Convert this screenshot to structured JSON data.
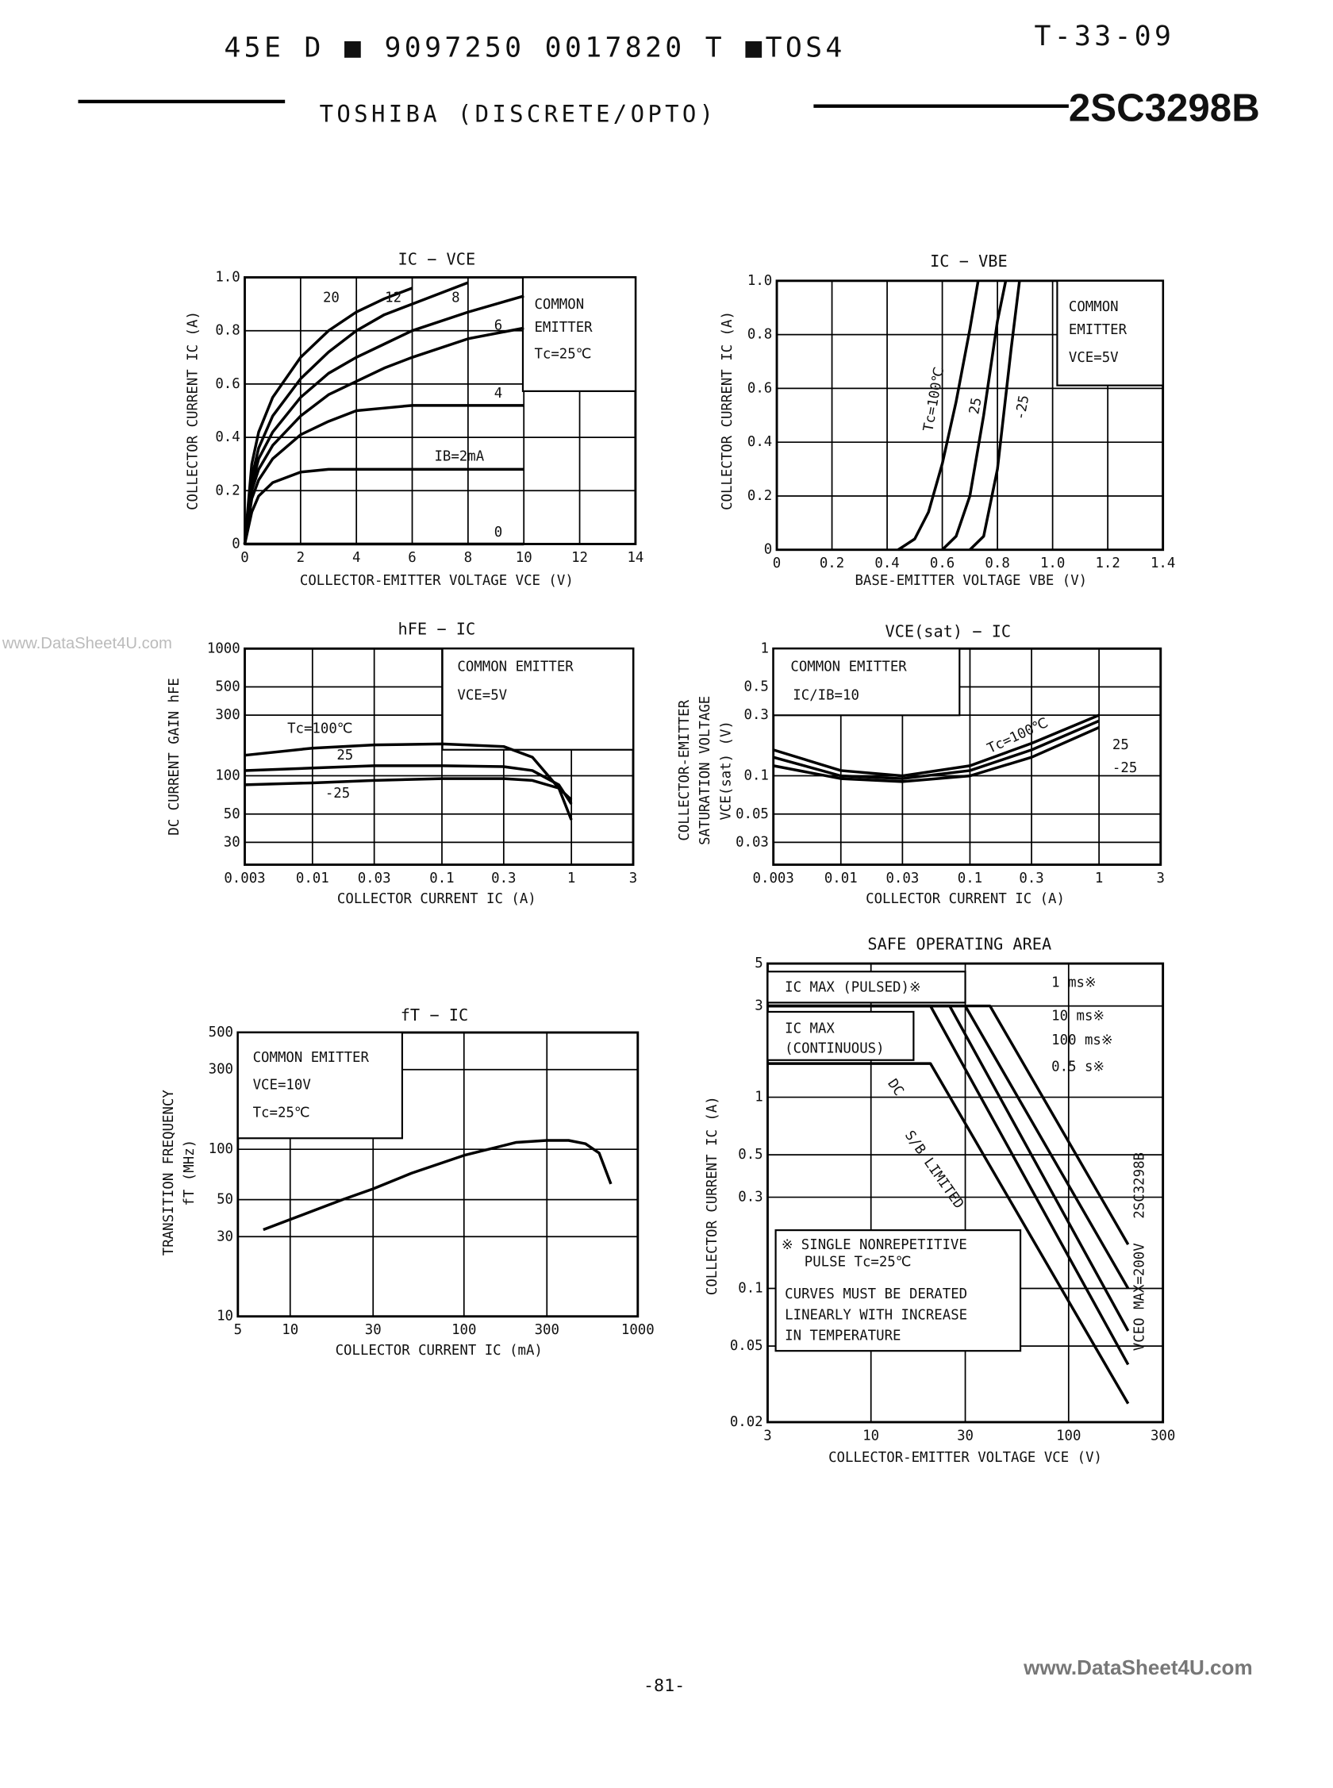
{
  "header": {
    "code": "45E D ■ 9097250 0017820 T ■TOS4",
    "ref": "T-33-09",
    "maker": "TOSHIBA (DISCRETE/OPTO)",
    "part": "2SC3298B"
  },
  "watermark": "www.DataSheet4U.com",
  "footer": {
    "page": "-81-",
    "site": "www.DataSheet4U.com"
  },
  "chart_data": [
    {
      "type": "line",
      "title": "IC − VCE",
      "xlabel": "COLLECTOR-EMITTER VOLTAGE  VCE (V)",
      "ylabel": [
        "COLLECTOR CURRENT  IC (A)"
      ],
      "xscale": "linear",
      "yscale": "linear",
      "xlim": [
        0,
        14
      ],
      "ylim": [
        0,
        1
      ],
      "xticks": [
        0,
        2,
        4,
        6,
        8,
        10,
        12,
        14
      ],
      "yticks": [
        0,
        0.2,
        0.4,
        0.6,
        0.8,
        {
          "value": 1,
          "label": "1.0"
        }
      ],
      "grid": true,
      "annotations": [
        "COMMON",
        "EMITTER",
        "Tc=25℃"
      ],
      "series": [
        {
          "name": "20",
          "color": "#000",
          "x": [
            0,
            0.25,
            0.5,
            1,
            2,
            3,
            4,
            5,
            6,
            8,
            10
          ],
          "values": [
            0,
            0.3,
            0.42,
            0.55,
            0.7,
            0.8,
            0.87,
            0.92,
            0.96,
            null,
            null
          ]
        },
        {
          "name": "12",
          "color": "#000",
          "x": [
            0,
            0.25,
            0.5,
            1,
            2,
            3,
            4,
            5,
            6,
            8,
            10
          ],
          "values": [
            0,
            0.25,
            0.36,
            0.48,
            0.62,
            0.72,
            0.8,
            0.86,
            0.9,
            0.98,
            null
          ]
        },
        {
          "name": "8",
          "color": "#000",
          "x": [
            0,
            0.25,
            0.5,
            1,
            2,
            3,
            4,
            5,
            6,
            8,
            10
          ],
          "values": [
            0,
            0.22,
            0.32,
            0.42,
            0.55,
            0.64,
            0.7,
            0.75,
            0.8,
            0.87,
            0.93
          ]
        },
        {
          "name": "6",
          "color": "#000",
          "x": [
            0,
            0.25,
            0.5,
            1,
            2,
            3,
            4,
            5,
            6,
            8,
            10
          ],
          "values": [
            0,
            0.2,
            0.28,
            0.37,
            0.48,
            0.56,
            0.61,
            0.66,
            0.7,
            0.77,
            0.81
          ]
        },
        {
          "name": "4",
          "color": "#000",
          "x": [
            0,
            0.25,
            0.5,
            1,
            2,
            3,
            4,
            5,
            6,
            8,
            10
          ],
          "values": [
            0,
            0.17,
            0.24,
            0.32,
            0.41,
            0.46,
            0.5,
            0.51,
            0.52,
            0.52,
            0.52
          ]
        },
        {
          "name": "IB=2mA",
          "color": "#000",
          "x": [
            0,
            0.25,
            0.5,
            1,
            2,
            3,
            4,
            5,
            6,
            8,
            10
          ],
          "values": [
            0,
            0.12,
            0.18,
            0.23,
            0.27,
            0.28,
            0.28,
            0.28,
            0.28,
            0.28,
            0.28
          ]
        },
        {
          "name": "0",
          "color": "#000",
          "x": [
            0,
            0.25,
            0.5,
            1,
            2,
            3,
            4,
            5,
            6,
            8,
            10
          ],
          "values": [
            0,
            0,
            0,
            0,
            0,
            0,
            0,
            0,
            0,
            0,
            0
          ]
        }
      ]
    },
    {
      "type": "line",
      "title": "IC − VBE",
      "xlabel": "BASE-EMITTER VOLTAGE  VBE (V)",
      "ylabel": [
        "COLLECTOR CURRENT  IC (A)"
      ],
      "xscale": "linear",
      "yscale": "linear",
      "xlim": [
        0,
        1.4
      ],
      "ylim": [
        0,
        1
      ],
      "xticks": [
        0,
        0.2,
        0.4,
        0.6,
        0.8,
        {
          "value": 1,
          "label": "1.0"
        },
        1.2,
        1.4
      ],
      "yticks": [
        0,
        0.2,
        0.4,
        0.6,
        0.8,
        {
          "value": 1,
          "label": "1.0"
        }
      ],
      "grid": true,
      "annotations": [
        "COMMON",
        "EMITTER",
        "VCE=5V"
      ],
      "series": [
        {
          "name": "Tc=100℃",
          "color": "#000",
          "x": [
            0.44,
            0.5,
            0.55,
            0.6,
            0.65,
            0.7,
            0.73
          ],
          "values": [
            0,
            0.04,
            0.14,
            0.32,
            0.55,
            0.82,
            1
          ]
        },
        {
          "name": "25",
          "color": "#000",
          "x": [
            0.6,
            0.65,
            0.7,
            0.75,
            0.8,
            0.83
          ],
          "values": [
            0,
            0.05,
            0.2,
            0.5,
            0.85,
            1
          ]
        },
        {
          "name": "-25",
          "color": "#000",
          "x": [
            0.7,
            0.75,
            0.8,
            0.85,
            0.88
          ],
          "values": [
            0,
            0.05,
            0.3,
            0.75,
            1
          ]
        }
      ]
    },
    {
      "type": "line",
      "title": "hFE − IC",
      "xlabel": "COLLECTOR CURRENT  IC (A)",
      "ylabel": [
        "DC CURRENT GAIN  hFE"
      ],
      "xscale": "log",
      "yscale": "log",
      "xlim": [
        0.003,
        3
      ],
      "ylim": [
        20,
        1000
      ],
      "xticks": [
        0.003,
        0.01,
        0.03,
        0.1,
        0.3,
        1,
        3
      ],
      "yticks": [
        30,
        50,
        100,
        300,
        500,
        1000
      ],
      "grid": true,
      "annotations": [
        "COMMON EMITTER",
        "VCE=5V"
      ],
      "series": [
        {
          "name": "Tc=100℃",
          "color": "#000",
          "x": [
            0.003,
            0.01,
            0.03,
            0.1,
            0.3,
            0.5,
            0.8,
            1
          ],
          "values": [
            145,
            165,
            175,
            178,
            170,
            140,
            80,
            45
          ]
        },
        {
          "name": "25",
          "color": "#000",
          "x": [
            0.003,
            0.01,
            0.03,
            0.1,
            0.3,
            0.5,
            0.8,
            1
          ],
          "values": [
            110,
            115,
            120,
            120,
            118,
            110,
            85,
            60
          ]
        },
        {
          "name": "-25",
          "color": "#000",
          "x": [
            0.003,
            0.01,
            0.03,
            0.1,
            0.3,
            0.5,
            0.8,
            1
          ],
          "values": [
            85,
            88,
            92,
            95,
            95,
            92,
            80,
            65
          ]
        }
      ]
    },
    {
      "type": "line",
      "title": "VCE(sat) − IC",
      "xlabel": "COLLECTOR CURRENT  IC (A)",
      "ylabel": [
        "COLLECTOR-EMITTER",
        "SATURATION VOLTAGE",
        "VCE(sat) (V)"
      ],
      "xscale": "log",
      "yscale": "log",
      "xlim": [
        0.003,
        3
      ],
      "ylim": [
        0.02,
        1
      ],
      "xticks": [
        0.003,
        0.01,
        0.03,
        0.1,
        0.3,
        1,
        3
      ],
      "yticks": [
        0.03,
        0.05,
        0.1,
        0.3,
        0.5,
        1
      ],
      "grid": true,
      "annotations": [
        "COMMON EMITTER",
        "IC/IB=10"
      ],
      "series": [
        {
          "name": "Tc=100℃",
          "color": "#000",
          "x": [
            0.003,
            0.01,
            0.03,
            0.1,
            0.3,
            1
          ],
          "values": [
            0.16,
            0.11,
            0.1,
            0.12,
            0.18,
            0.3
          ]
        },
        {
          "name": "25",
          "color": "#000",
          "x": [
            0.003,
            0.01,
            0.03,
            0.1,
            0.3,
            1
          ],
          "values": [
            0.14,
            0.1,
            0.095,
            0.11,
            0.16,
            0.27
          ]
        },
        {
          "name": "-25",
          "color": "#000",
          "x": [
            0.003,
            0.01,
            0.03,
            0.1,
            0.3,
            1
          ],
          "values": [
            0.12,
            0.095,
            0.09,
            0.1,
            0.14,
            0.24
          ]
        }
      ]
    },
    {
      "type": "line",
      "title": "fT − IC",
      "xlabel": "COLLECTOR CURRENT  IC (mA)",
      "ylabel": [
        "TRANSITION FREQUENCY",
        "fT (MHz)"
      ],
      "xscale": "log",
      "yscale": "log",
      "xlim": [
        5,
        1000
      ],
      "ylim": [
        10,
        500
      ],
      "xticks": [
        5,
        10,
        30,
        100,
        300,
        1000
      ],
      "yticks": [
        10,
        30,
        50,
        100,
        300,
        500
      ],
      "grid": true,
      "annotations": [
        "COMMON EMITTER",
        "VCE=10V",
        "Tc=25℃"
      ],
      "series": [
        {
          "color": "#000",
          "x": [
            7,
            10,
            20,
            30,
            50,
            100,
            200,
            300,
            400,
            500,
            600,
            700
          ],
          "values": [
            33,
            38,
            50,
            58,
            72,
            92,
            110,
            113,
            113,
            108,
            95,
            62
          ]
        }
      ]
    },
    {
      "type": "line",
      "title": "SAFE OPERATING AREA",
      "xlabel": "COLLECTOR-EMITTER VOLTAGE  VCE (V)",
      "ylabel": [
        "COLLECTOR CURRENT  IC (A)"
      ],
      "xscale": "log",
      "yscale": "log",
      "xlim": [
        3,
        300
      ],
      "ylim": [
        0.02,
        5
      ],
      "xticks": [
        3,
        10,
        30,
        100,
        300
      ],
      "yticks": [
        0.02,
        0.05,
        0.1,
        0.3,
        0.5,
        1,
        3,
        5
      ],
      "grid": true,
      "annotations": [
        "IC MAX (PULSED)※",
        "IC MAX",
        "(CONTINUOUS)",
        "※ SINGLE NONREPETITIVE",
        "PULSE  Tc=25℃",
        "CURVES MUST BE DERATED",
        "LINEARLY WITH INCREASE",
        "IN TEMPERATURE",
        "S/B LIMITED",
        "VCEO MAX=200V",
        "2SC3298B"
      ],
      "series": [
        {
          "name": "1 ms※",
          "color": "#000",
          "x": [
            3,
            40,
            200
          ],
          "values": [
            3,
            3,
            0.17
          ]
        },
        {
          "name": "10 ms※",
          "color": "#000",
          "x": [
            3,
            30,
            200
          ],
          "values": [
            3,
            3,
            0.1
          ]
        },
        {
          "name": "100 ms※",
          "color": "#000",
          "x": [
            3,
            25,
            200
          ],
          "values": [
            3,
            3,
            0.06
          ]
        },
        {
          "name": "0.5 s※",
          "color": "#000",
          "x": [
            3,
            20,
            200
          ],
          "values": [
            3,
            3,
            0.04
          ]
        },
        {
          "name": "DC",
          "color": "#000",
          "x": [
            3,
            20,
            200
          ],
          "values": [
            1.5,
            1.5,
            0.025
          ]
        }
      ]
    }
  ]
}
